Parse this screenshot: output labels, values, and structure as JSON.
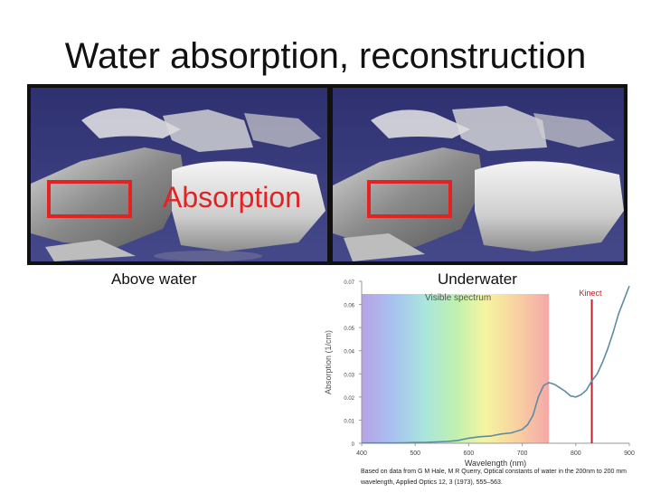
{
  "slide": {
    "title": "Water absorption, reconstruction",
    "absorption_label": "Absorption",
    "caption_above": "Above water",
    "caption_under": "Underwater",
    "credit": "Based on data from G M Hale, M R Querry, Optical constants of water in the 200nm to 200 mm wavelength, Applied Optics 12, 3 (1973), 555–563."
  },
  "colors": {
    "highlight": "#e32222",
    "scene_background": "#3b3f7a",
    "curve": "#5c8ba3",
    "kinect_line": "#c0202a"
  },
  "chart_data": {
    "type": "line",
    "title": "",
    "xlabel": "Wavelength (nm)",
    "ylabel": "Absorption (1/cm)",
    "xlim": [
      400,
      900
    ],
    "ylim": [
      0,
      0.07
    ],
    "xticks": [
      400,
      500,
      600,
      700,
      800,
      900
    ],
    "yticks": [
      0,
      0.01,
      0.02,
      0.03,
      0.04,
      0.05,
      0.06,
      0.07
    ],
    "x": [
      400,
      420,
      440,
      460,
      480,
      500,
      520,
      540,
      560,
      580,
      600,
      620,
      640,
      660,
      680,
      700,
      710,
      720,
      730,
      740,
      750,
      760,
      770,
      780,
      790,
      800,
      810,
      820,
      830,
      840,
      850,
      860,
      870,
      880,
      890,
      900
    ],
    "y": [
      0.0001,
      0.0001,
      0.0001,
      0.0001,
      0.0002,
      0.0003,
      0.0004,
      0.0006,
      0.0008,
      0.0012,
      0.0022,
      0.0028,
      0.0031,
      0.004,
      0.0045,
      0.006,
      0.008,
      0.012,
      0.02,
      0.025,
      0.0262,
      0.0255,
      0.024,
      0.0225,
      0.0205,
      0.02,
      0.021,
      0.023,
      0.027,
      0.03,
      0.035,
      0.041,
      0.048,
      0.056,
      0.062,
      0.068
    ],
    "visible_band": {
      "label": "Visible spectrum",
      "x_range": [
        400,
        750
      ]
    },
    "marker": {
      "label": "Kinect",
      "x": 830
    }
  }
}
